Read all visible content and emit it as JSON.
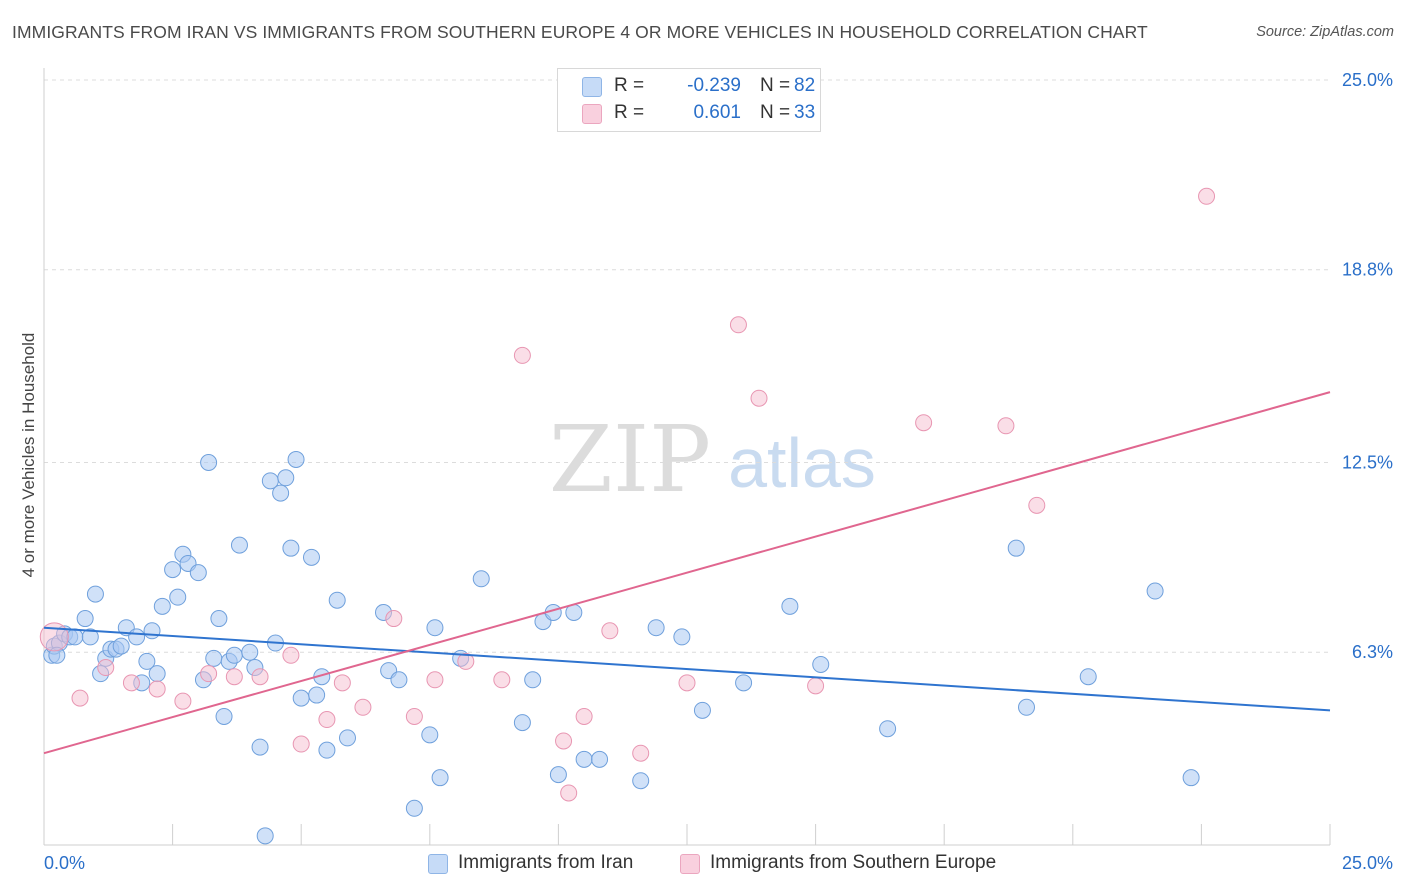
{
  "title": "IMMIGRANTS FROM IRAN VS IMMIGRANTS FROM SOUTHERN EUROPE 4 OR MORE VEHICLES IN HOUSEHOLD CORRELATION CHART",
  "source": "Source: ZipAtlas.com",
  "watermark": {
    "zip": "ZIP",
    "atlas": "atlas"
  },
  "legend": {
    "series1": {
      "r_label": "R =",
      "r_value": "-0.239",
      "n_label": "N =",
      "n_value": "82"
    },
    "series2": {
      "r_label": "R =",
      "r_value": "0.601",
      "n_label": "N =",
      "n_value": "33"
    }
  },
  "bottom_legend": {
    "series1": "Immigrants from Iran",
    "series2": "Immigrants from Southern Europe"
  },
  "colors": {
    "series1_fill": "#a9c8f2",
    "series1_stroke": "#6fa0dc",
    "series1_line": "#2f74cf",
    "series2_fill": "#f6bdd0",
    "series2_stroke": "#e896b2",
    "series2_line": "#e0668f",
    "tick_text": "#2a6fc9",
    "grid": "#dcdcdc"
  },
  "chart_data": {
    "type": "scatter",
    "title": "IMMIGRANTS FROM IRAN VS IMMIGRANTS FROM SOUTHERN EUROPE 4 OR MORE VEHICLES IN HOUSEHOLD CORRELATION CHART",
    "xlabel": "",
    "ylabel": "4 or more Vehicles in Household",
    "xlim": [
      0,
      25
    ],
    "ylim": [
      0,
      25
    ],
    "x_tick_labels": [
      "0.0%",
      "25.0%"
    ],
    "y_ticks": [
      6.3,
      12.5,
      18.8,
      25.0
    ],
    "y_tick_labels": [
      "6.3%",
      "12.5%",
      "18.8%",
      "25.0%"
    ],
    "grid": "horizontal dashed",
    "legend_position": "top-center",
    "series": [
      {
        "name": "Immigrants from Iran",
        "r": -0.239,
        "n": 82,
        "trend": {
          "x": [
            0,
            25
          ],
          "y": [
            7.1,
            4.4
          ]
        },
        "points": [
          [
            0.15,
            6.2
          ],
          [
            0.2,
            6.5
          ],
          [
            0.3,
            6.6
          ],
          [
            0.4,
            6.9
          ],
          [
            0.5,
            6.8
          ],
          [
            0.6,
            6.8
          ],
          [
            0.8,
            7.4
          ],
          [
            0.9,
            6.8
          ],
          [
            1.0,
            8.2
          ],
          [
            1.1,
            5.6
          ],
          [
            1.2,
            6.1
          ],
          [
            1.3,
            6.4
          ],
          [
            1.4,
            6.4
          ],
          [
            1.5,
            6.5
          ],
          [
            1.6,
            7.1
          ],
          [
            1.8,
            6.8
          ],
          [
            1.9,
            5.3
          ],
          [
            2.0,
            6.0
          ],
          [
            2.1,
            7.0
          ],
          [
            2.2,
            5.6
          ],
          [
            2.3,
            7.8
          ],
          [
            2.5,
            9.0
          ],
          [
            2.6,
            8.1
          ],
          [
            2.7,
            9.5
          ],
          [
            2.8,
            9.2
          ],
          [
            3.0,
            8.9
          ],
          [
            3.1,
            5.4
          ],
          [
            3.2,
            12.5
          ],
          [
            3.3,
            6.1
          ],
          [
            3.4,
            7.4
          ],
          [
            3.5,
            4.2
          ],
          [
            3.6,
            6.0
          ],
          [
            3.7,
            6.2
          ],
          [
            3.8,
            9.8
          ],
          [
            4.0,
            6.3
          ],
          [
            4.1,
            5.8
          ],
          [
            4.2,
            3.2
          ],
          [
            4.3,
            0.3
          ],
          [
            4.4,
            11.9
          ],
          [
            4.5,
            6.6
          ],
          [
            4.6,
            11.5
          ],
          [
            4.7,
            12.0
          ],
          [
            4.8,
            9.7
          ],
          [
            4.9,
            12.6
          ],
          [
            5.0,
            4.8
          ],
          [
            5.2,
            9.4
          ],
          [
            5.3,
            4.9
          ],
          [
            5.4,
            5.5
          ],
          [
            5.5,
            3.1
          ],
          [
            5.7,
            8.0
          ],
          [
            5.9,
            3.5
          ],
          [
            6.6,
            7.6
          ],
          [
            6.7,
            5.7
          ],
          [
            6.9,
            5.4
          ],
          [
            7.2,
            1.2
          ],
          [
            7.5,
            3.6
          ],
          [
            7.6,
            7.1
          ],
          [
            7.7,
            2.2
          ],
          [
            8.1,
            6.1
          ],
          [
            8.5,
            8.7
          ],
          [
            9.3,
            4.0
          ],
          [
            9.5,
            5.4
          ],
          [
            9.7,
            7.3
          ],
          [
            9.9,
            7.6
          ],
          [
            10.0,
            2.3
          ],
          [
            10.3,
            7.6
          ],
          [
            10.5,
            2.8
          ],
          [
            10.8,
            2.8
          ],
          [
            11.6,
            2.1
          ],
          [
            11.9,
            7.1
          ],
          [
            12.4,
            6.8
          ],
          [
            12.8,
            4.4
          ],
          [
            13.6,
            5.3
          ],
          [
            14.5,
            7.8
          ],
          [
            15.1,
            5.9
          ],
          [
            16.4,
            3.8
          ],
          [
            18.9,
            9.7
          ],
          [
            19.1,
            4.5
          ],
          [
            20.3,
            5.5
          ],
          [
            21.6,
            8.3
          ],
          [
            22.3,
            2.2
          ],
          [
            0.25,
            6.2
          ]
        ]
      },
      {
        "name": "Immigrants from Southern Europe",
        "r": 0.601,
        "n": 33,
        "trend": {
          "x": [
            0,
            25
          ],
          "y": [
            3.0,
            14.8
          ]
        },
        "points": [
          [
            0.2,
            6.8
          ],
          [
            0.7,
            4.8
          ],
          [
            1.2,
            5.8
          ],
          [
            1.7,
            5.3
          ],
          [
            2.2,
            5.1
          ],
          [
            2.7,
            4.7
          ],
          [
            3.2,
            5.6
          ],
          [
            3.7,
            5.5
          ],
          [
            4.2,
            5.5
          ],
          [
            4.8,
            6.2
          ],
          [
            5.0,
            3.3
          ],
          [
            5.5,
            4.1
          ],
          [
            5.8,
            5.3
          ],
          [
            6.2,
            4.5
          ],
          [
            6.8,
            7.4
          ],
          [
            7.2,
            4.2
          ],
          [
            7.6,
            5.4
          ],
          [
            8.2,
            6.0
          ],
          [
            8.9,
            5.4
          ],
          [
            9.3,
            16.0
          ],
          [
            10.1,
            3.4
          ],
          [
            10.2,
            1.7
          ],
          [
            10.5,
            4.2
          ],
          [
            11.0,
            7.0
          ],
          [
            11.6,
            3.0
          ],
          [
            12.5,
            5.3
          ],
          [
            13.5,
            17.0
          ],
          [
            13.9,
            14.6
          ],
          [
            15.0,
            5.2
          ],
          [
            17.1,
            13.8
          ],
          [
            18.7,
            13.7
          ],
          [
            19.3,
            11.1
          ],
          [
            22.6,
            21.2
          ]
        ]
      }
    ]
  }
}
